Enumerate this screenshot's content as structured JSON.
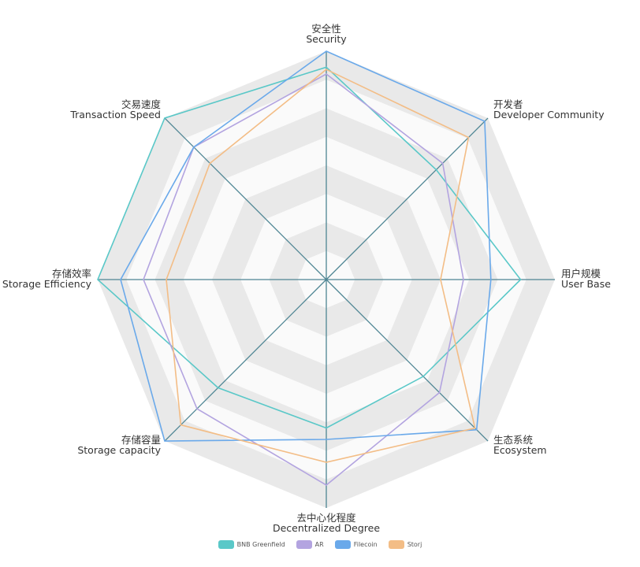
{
  "chart_data": {
    "type": "radar",
    "indicators": [
      {
        "label_cn": "安全性",
        "label_en": "Security"
      },
      {
        "label_cn": "开发者",
        "label_en": "Developer Community"
      },
      {
        "label_cn": "用户规模",
        "label_en": "User Base"
      },
      {
        "label_cn": "生态系统",
        "label_en": "Ecosystem"
      },
      {
        "label_cn": "去中心化程度",
        "label_en": "Decentralized Degree"
      },
      {
        "label_cn": "存储容量",
        "label_en": "Storage capacity"
      },
      {
        "label_cn": "存储效率",
        "label_en": "Storage Efficiency"
      },
      {
        "label_cn": "交易速度",
        "label_en": "Transaction Speed"
      }
    ],
    "max": 1,
    "split_number": 8,
    "series": [
      {
        "name": "BNB Greenfield",
        "color": "#5ac8c8",
        "values": [
          0.93,
          0.68,
          0.85,
          0.6,
          0.65,
          0.67,
          1.0,
          1.0
        ]
      },
      {
        "name": "AR",
        "color": "#b3a4e0",
        "values": [
          0.9,
          0.72,
          0.6,
          0.7,
          0.9,
          0.8,
          0.8,
          0.82
        ]
      },
      {
        "name": "Filecoin",
        "color": "#6aa9ea",
        "values": [
          1.0,
          0.98,
          0.72,
          0.93,
          0.7,
          1.0,
          0.9,
          0.82
        ]
      },
      {
        "name": "Storj",
        "color": "#f3bd86",
        "values": [
          0.92,
          0.88,
          0.5,
          0.92,
          0.8,
          0.9,
          0.7,
          0.72
        ]
      }
    ],
    "legend_position": "bottom-center"
  }
}
